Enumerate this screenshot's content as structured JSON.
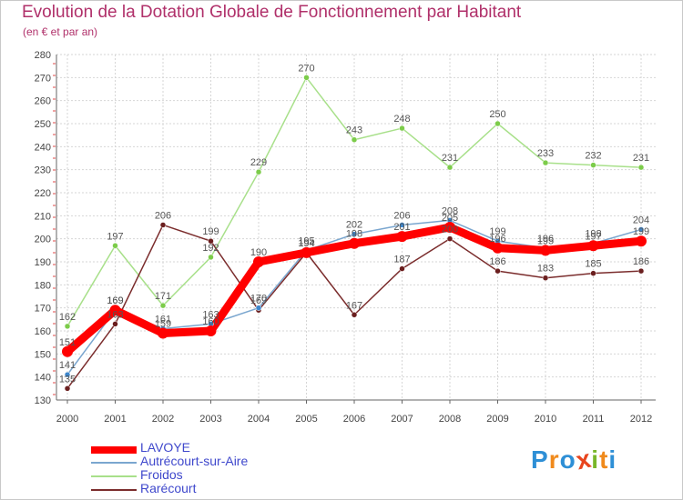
{
  "header": {
    "title": "Evolution de la Dotation Globale de Fonctionnement par Habitant",
    "subtitle": "(en € et par an)"
  },
  "logo": {
    "text": "Proxiti",
    "letters": [
      {
        "ch": "P",
        "color": "#2e8fd6"
      },
      {
        "ch": "r",
        "color": "#f08a1c"
      },
      {
        "ch": "o",
        "color": "#2e8fd6"
      },
      {
        "ch": "x",
        "color": "#e8451e"
      },
      {
        "ch": "i",
        "color": "#79b72a"
      },
      {
        "ch": "t",
        "color": "#f08a1c"
      },
      {
        "ch": "i",
        "color": "#2e8fd6"
      }
    ]
  },
  "chart_data": {
    "type": "line",
    "title": "Evolution de la Dotation Globale de Fonctionnement par Habitant",
    "subtitle": "(en € et par an)",
    "xlabel": "",
    "ylabel": "",
    "x": [
      "2000",
      "2001",
      "2002",
      "2003",
      "2004",
      "2005",
      "2006",
      "2007",
      "2008",
      "2009",
      "2010",
      "2011",
      "2012"
    ],
    "ylim": [
      130,
      280
    ],
    "yticks": [
      130,
      140,
      150,
      160,
      170,
      180,
      190,
      200,
      210,
      220,
      230,
      240,
      250,
      260,
      270,
      280
    ],
    "grid": true,
    "legend_position": "bottom-left",
    "series": [
      {
        "name": "LAVOYE",
        "color": "#ff0000",
        "marker": "#ff0000",
        "values": [
          151,
          169,
          159,
          160,
          190,
          194,
          198,
          201,
          205,
          196,
          195,
          197,
          199
        ],
        "labels": [
          "151",
          "169",
          "159",
          "160",
          "190",
          "194",
          "198",
          "201",
          "205",
          "196",
          "195",
          "197",
          "199"
        ]
      },
      {
        "name": "Autrécourt-sur-Aire",
        "color": "#7aa6cf",
        "marker": "#3d86cc",
        "values": [
          141,
          169,
          161,
          163,
          170,
          195,
          202,
          206,
          208,
          199,
          196,
          198,
          204
        ],
        "labels": [
          "141",
          "169",
          "161",
          "163",
          "170",
          "195",
          "202",
          "206",
          "208",
          "199",
          "196",
          "198",
          "204"
        ]
      },
      {
        "name": "Froidos",
        "color": "#a8e08a",
        "marker": "#7ccc4a",
        "values": [
          162,
          197,
          171,
          192,
          229,
          270,
          243,
          248,
          231,
          250,
          233,
          232,
          231
        ],
        "labels": [
          "162",
          "197",
          "171",
          "192",
          "229",
          "270",
          "243",
          "248",
          "231",
          "250",
          "233",
          "232",
          "231"
        ]
      },
      {
        "name": "Rarécourt",
        "color": "#7b2d2d",
        "marker": "#6b1f1f",
        "values": [
          135,
          163,
          206,
          199,
          169,
          194,
          167,
          187,
          200,
          186,
          183,
          185,
          186
        ],
        "labels": [
          "135",
          "163",
          "206",
          "199",
          "169",
          "194",
          "167",
          "187",
          "200",
          "186",
          "183",
          "185",
          "186"
        ]
      }
    ]
  }
}
